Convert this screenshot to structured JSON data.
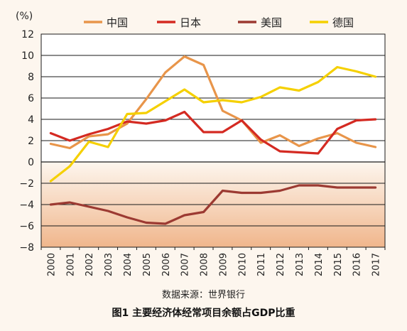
{
  "chart_data": {
    "type": "line",
    "unit": "(%)",
    "x": [
      "2000",
      "2001",
      "2002",
      "2003",
      "2004",
      "2005",
      "2006",
      "2007",
      "2008",
      "2009",
      "2010",
      "2011",
      "2012",
      "2013",
      "2014",
      "2015",
      "2016",
      "2017"
    ],
    "ylim": [
      -8,
      12
    ],
    "yticks": [
      "12",
      "10",
      "8",
      "6",
      "4",
      "2",
      "0",
      "−2",
      "−4",
      "−6",
      "−8"
    ],
    "grid": true,
    "legend_position": "top",
    "series": [
      {
        "name": "中国",
        "color": "#e8954a",
        "values": [
          1.7,
          1.3,
          2.4,
          2.6,
          3.6,
          5.9,
          8.4,
          9.9,
          9.1,
          4.8,
          3.9,
          1.8,
          2.5,
          1.5,
          2.2,
          2.7,
          1.8,
          1.4
        ]
      },
      {
        "name": "日本",
        "color": "#d42a22",
        "values": [
          2.7,
          2.0,
          2.6,
          3.1,
          3.8,
          3.6,
          3.9,
          4.7,
          2.8,
          2.8,
          3.9,
          2.1,
          1.0,
          0.9,
          0.8,
          3.1,
          3.9,
          4.0
        ]
      },
      {
        "name": "美国",
        "color": "#9c3a32",
        "values": [
          -4.0,
          -3.8,
          -4.2,
          -4.6,
          -5.2,
          -5.7,
          -5.8,
          -5.0,
          -4.7,
          -2.7,
          -2.9,
          -2.9,
          -2.7,
          -2.2,
          -2.2,
          -2.4,
          -2.4,
          -2.4
        ]
      },
      {
        "name": "德国",
        "color": "#f5d000",
        "values": [
          -1.8,
          -0.4,
          1.9,
          1.4,
          4.5,
          4.6,
          5.7,
          6.8,
          5.6,
          5.8,
          5.6,
          6.1,
          7.0,
          6.7,
          7.5,
          8.9,
          8.5,
          8.0
        ]
      }
    ]
  },
  "source_text": "数据来源：世界银行",
  "caption_text": "图1  主要经济体经常项目余额占GDP比重"
}
